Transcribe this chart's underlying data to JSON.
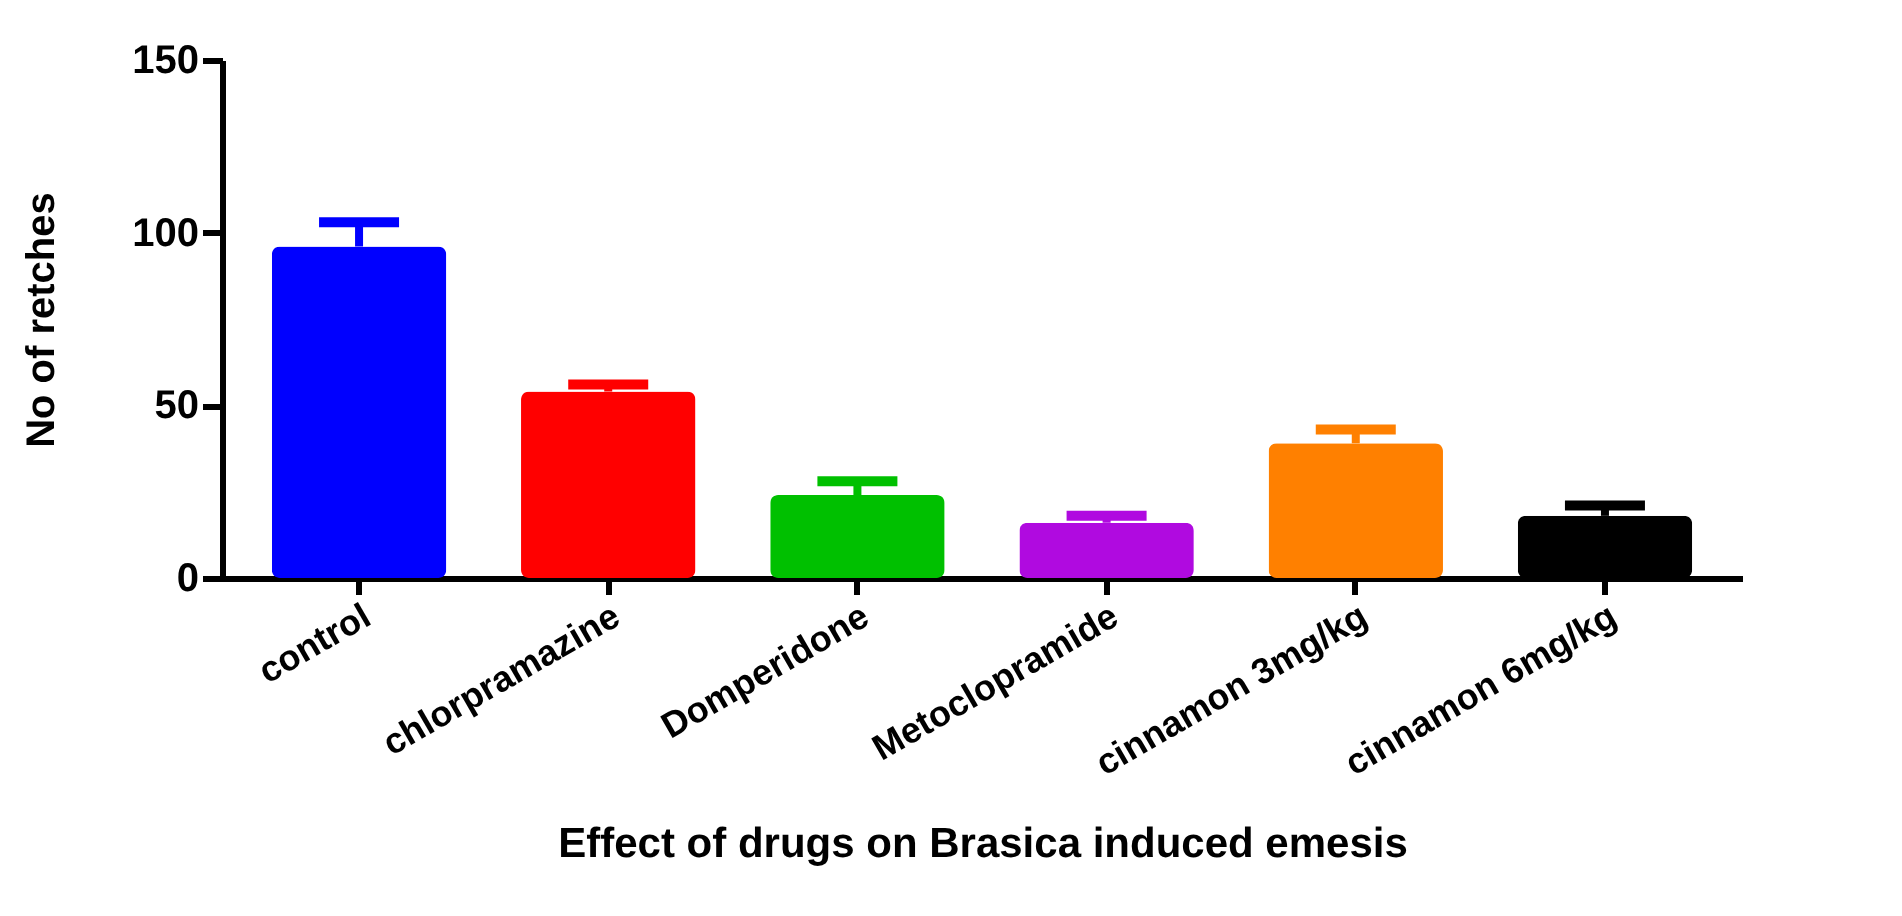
{
  "chart_data": {
    "type": "bar",
    "xlabel": "Effect of drugs on Brasica induced emesis",
    "ylabel": "No of retches",
    "categories": [
      "control",
      "chlorpramazine",
      "Domperidone",
      "Metoclopramide",
      "cinnamon 3mg/kg",
      "cinnamon 6mg/kg"
    ],
    "values": [
      96,
      54,
      24,
      16,
      39,
      18
    ],
    "errors": [
      [
        96,
        103
      ],
      [
        54,
        56
      ],
      [
        24,
        28
      ],
      [
        16,
        18
      ],
      [
        39,
        43
      ],
      [
        18,
        21
      ]
    ],
    "colors": [
      "#0000ff",
      "#ff0000",
      "#00c000",
      "#b00ae0",
      "#ff8000",
      "#000000"
    ],
    "ylim": [
      0,
      150
    ],
    "yticks": [
      0,
      50,
      100,
      150
    ],
    "grid": false
  }
}
